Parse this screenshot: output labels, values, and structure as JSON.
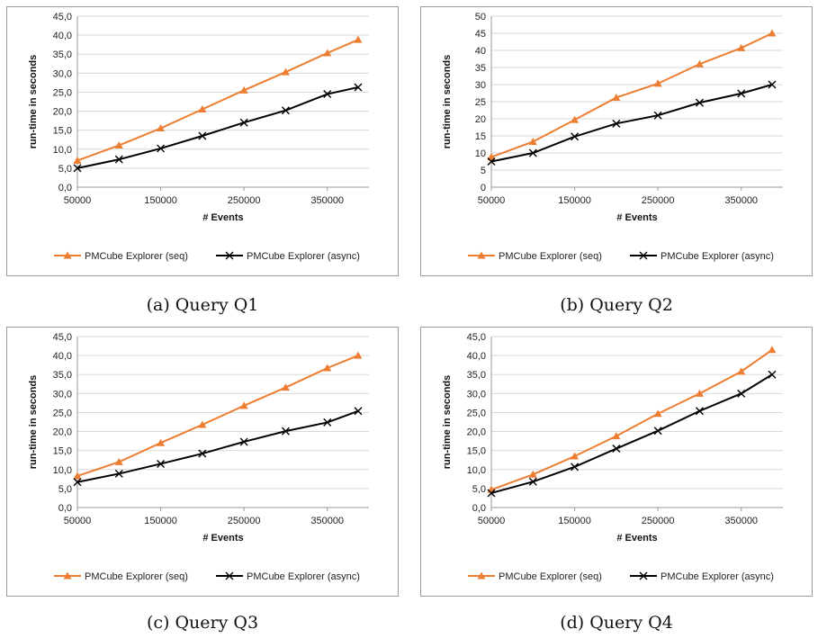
{
  "colors": {
    "seq": "#ED7D31",
    "async": "#000000",
    "grid": "#d9d9d9",
    "axis": "#9a9a9a"
  },
  "chart_data": [
    {
      "type": "line",
      "caption": "(a) Query Q1",
      "xlabel": "# Events",
      "ylabel": "run-time in seconds",
      "xlim": [
        50000,
        400000
      ],
      "ylim": [
        0,
        45
      ],
      "ystep": 5,
      "ytick_labels": [
        "0,0",
        "5,0",
        "10,0",
        "15,0",
        "20,0",
        "25,0",
        "30,0",
        "35,0",
        "40,0",
        "45,0"
      ],
      "xtick_labels": [
        "50000",
        "150000",
        "250000",
        "350000"
      ],
      "xticks": [
        50000,
        150000,
        250000,
        350000
      ],
      "x": [
        50000,
        100000,
        150000,
        200000,
        250000,
        300000,
        350000,
        387000
      ],
      "series": [
        {
          "name": "PMCube Explorer (seq)",
          "marker": "triangle",
          "values": [
            7.0,
            11.0,
            15.5,
            20.5,
            25.5,
            30.3,
            35.3,
            38.8
          ]
        },
        {
          "name": "PMCube Explorer (async)",
          "marker": "x",
          "values": [
            5.0,
            7.3,
            10.2,
            13.5,
            17.0,
            20.2,
            24.5,
            26.3
          ]
        }
      ],
      "legend": "bottom",
      "grid": true
    },
    {
      "type": "line",
      "caption": "(b) Query Q2",
      "xlabel": "# Events",
      "ylabel": "run-time in seconds",
      "xlim": [
        50000,
        400000
      ],
      "ylim": [
        0,
        50
      ],
      "ystep": 5,
      "ytick_labels": [
        "0",
        "5",
        "10",
        "15",
        "20",
        "25",
        "30",
        "35",
        "40",
        "45",
        "50"
      ],
      "xtick_labels": [
        "50000",
        "150000",
        "250000",
        "350000"
      ],
      "xticks": [
        50000,
        150000,
        250000,
        350000
      ],
      "x": [
        50000,
        100000,
        150000,
        200000,
        250000,
        300000,
        350000,
        387000
      ],
      "series": [
        {
          "name": "PMCube Explorer (seq)",
          "marker": "triangle",
          "values": [
            8.8,
            13.3,
            19.7,
            26.2,
            30.3,
            36.0,
            40.7,
            45.0
          ]
        },
        {
          "name": "PMCube Explorer (async)",
          "marker": "x",
          "values": [
            7.5,
            10.0,
            14.8,
            18.6,
            21.0,
            24.7,
            27.4,
            30.0
          ]
        }
      ],
      "legend": "bottom",
      "grid": true
    },
    {
      "type": "line",
      "caption": "(c) Query Q3",
      "xlabel": "# Events",
      "ylabel": "run-time in seconds",
      "xlim": [
        50000,
        400000
      ],
      "ylim": [
        0,
        45
      ],
      "ystep": 5,
      "ytick_labels": [
        "0,0",
        "5,0",
        "10,0",
        "15,0",
        "20,0",
        "25,0",
        "30,0",
        "35,0",
        "40,0",
        "45,0"
      ],
      "xtick_labels": [
        "50000",
        "150000",
        "250000",
        "350000"
      ],
      "xticks": [
        50000,
        150000,
        250000,
        350000
      ],
      "x": [
        50000,
        100000,
        150000,
        200000,
        250000,
        300000,
        350000,
        387000
      ],
      "series": [
        {
          "name": "PMCube Explorer (seq)",
          "marker": "triangle",
          "values": [
            8.3,
            12.0,
            17.0,
            21.8,
            26.8,
            31.6,
            36.7,
            40.0
          ]
        },
        {
          "name": "PMCube Explorer (async)",
          "marker": "x",
          "values": [
            6.7,
            8.9,
            11.5,
            14.2,
            17.3,
            20.1,
            22.4,
            25.4
          ]
        }
      ],
      "legend": "bottom",
      "grid": true
    },
    {
      "type": "line",
      "caption": "(d) Query Q4",
      "xlabel": "# Events",
      "ylabel": "run-time in seconds",
      "xlim": [
        50000,
        400000
      ],
      "ylim": [
        0,
        45
      ],
      "ystep": 5,
      "ytick_labels": [
        "0,0",
        "5,0",
        "10,0",
        "15,0",
        "20,0",
        "25,0",
        "30,0",
        "35,0",
        "40,0",
        "45,0"
      ],
      "xtick_labels": [
        "50000",
        "150000",
        "250000",
        "350000"
      ],
      "xticks": [
        50000,
        150000,
        250000,
        350000
      ],
      "x": [
        50000,
        100000,
        150000,
        200000,
        250000,
        300000,
        350000,
        387000
      ],
      "series": [
        {
          "name": "PMCube Explorer (seq)",
          "marker": "triangle",
          "values": [
            4.7,
            8.7,
            13.5,
            18.8,
            24.7,
            30.0,
            35.8,
            41.5
          ]
        },
        {
          "name": "PMCube Explorer (async)",
          "marker": "x",
          "values": [
            3.8,
            6.8,
            10.7,
            15.5,
            20.2,
            25.4,
            30.0,
            35.0
          ]
        }
      ],
      "legend": "bottom",
      "grid": true
    }
  ]
}
